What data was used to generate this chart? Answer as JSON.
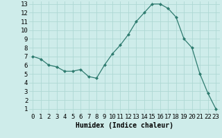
{
  "x": [
    0,
    1,
    2,
    3,
    4,
    5,
    6,
    7,
    8,
    9,
    10,
    11,
    12,
    13,
    14,
    15,
    16,
    17,
    18,
    19,
    20,
    21,
    22,
    23
  ],
  "y": [
    7.0,
    6.7,
    6.0,
    5.8,
    5.3,
    5.3,
    5.5,
    4.7,
    4.5,
    6.0,
    7.3,
    8.3,
    9.5,
    11.0,
    12.0,
    13.0,
    13.0,
    12.5,
    11.5,
    9.0,
    8.0,
    5.0,
    2.8,
    1.0
  ],
  "xlabel": "Humidex (Indice chaleur)",
  "xlim": [
    -0.5,
    23.5
  ],
  "ylim": [
    0.5,
    13.3
  ],
  "yticks": [
    1,
    2,
    3,
    4,
    5,
    6,
    7,
    8,
    9,
    10,
    11,
    12,
    13
  ],
  "xticks": [
    0,
    1,
    2,
    3,
    4,
    5,
    6,
    7,
    8,
    9,
    10,
    11,
    12,
    13,
    14,
    15,
    16,
    17,
    18,
    19,
    20,
    21,
    22,
    23
  ],
  "line_color": "#2e7b6f",
  "marker_color": "#2e7b6f",
  "bg_color": "#ceecea",
  "grid_color": "#aed8d4",
  "xlabel_fontsize": 7,
  "tick_fontsize": 6.5
}
